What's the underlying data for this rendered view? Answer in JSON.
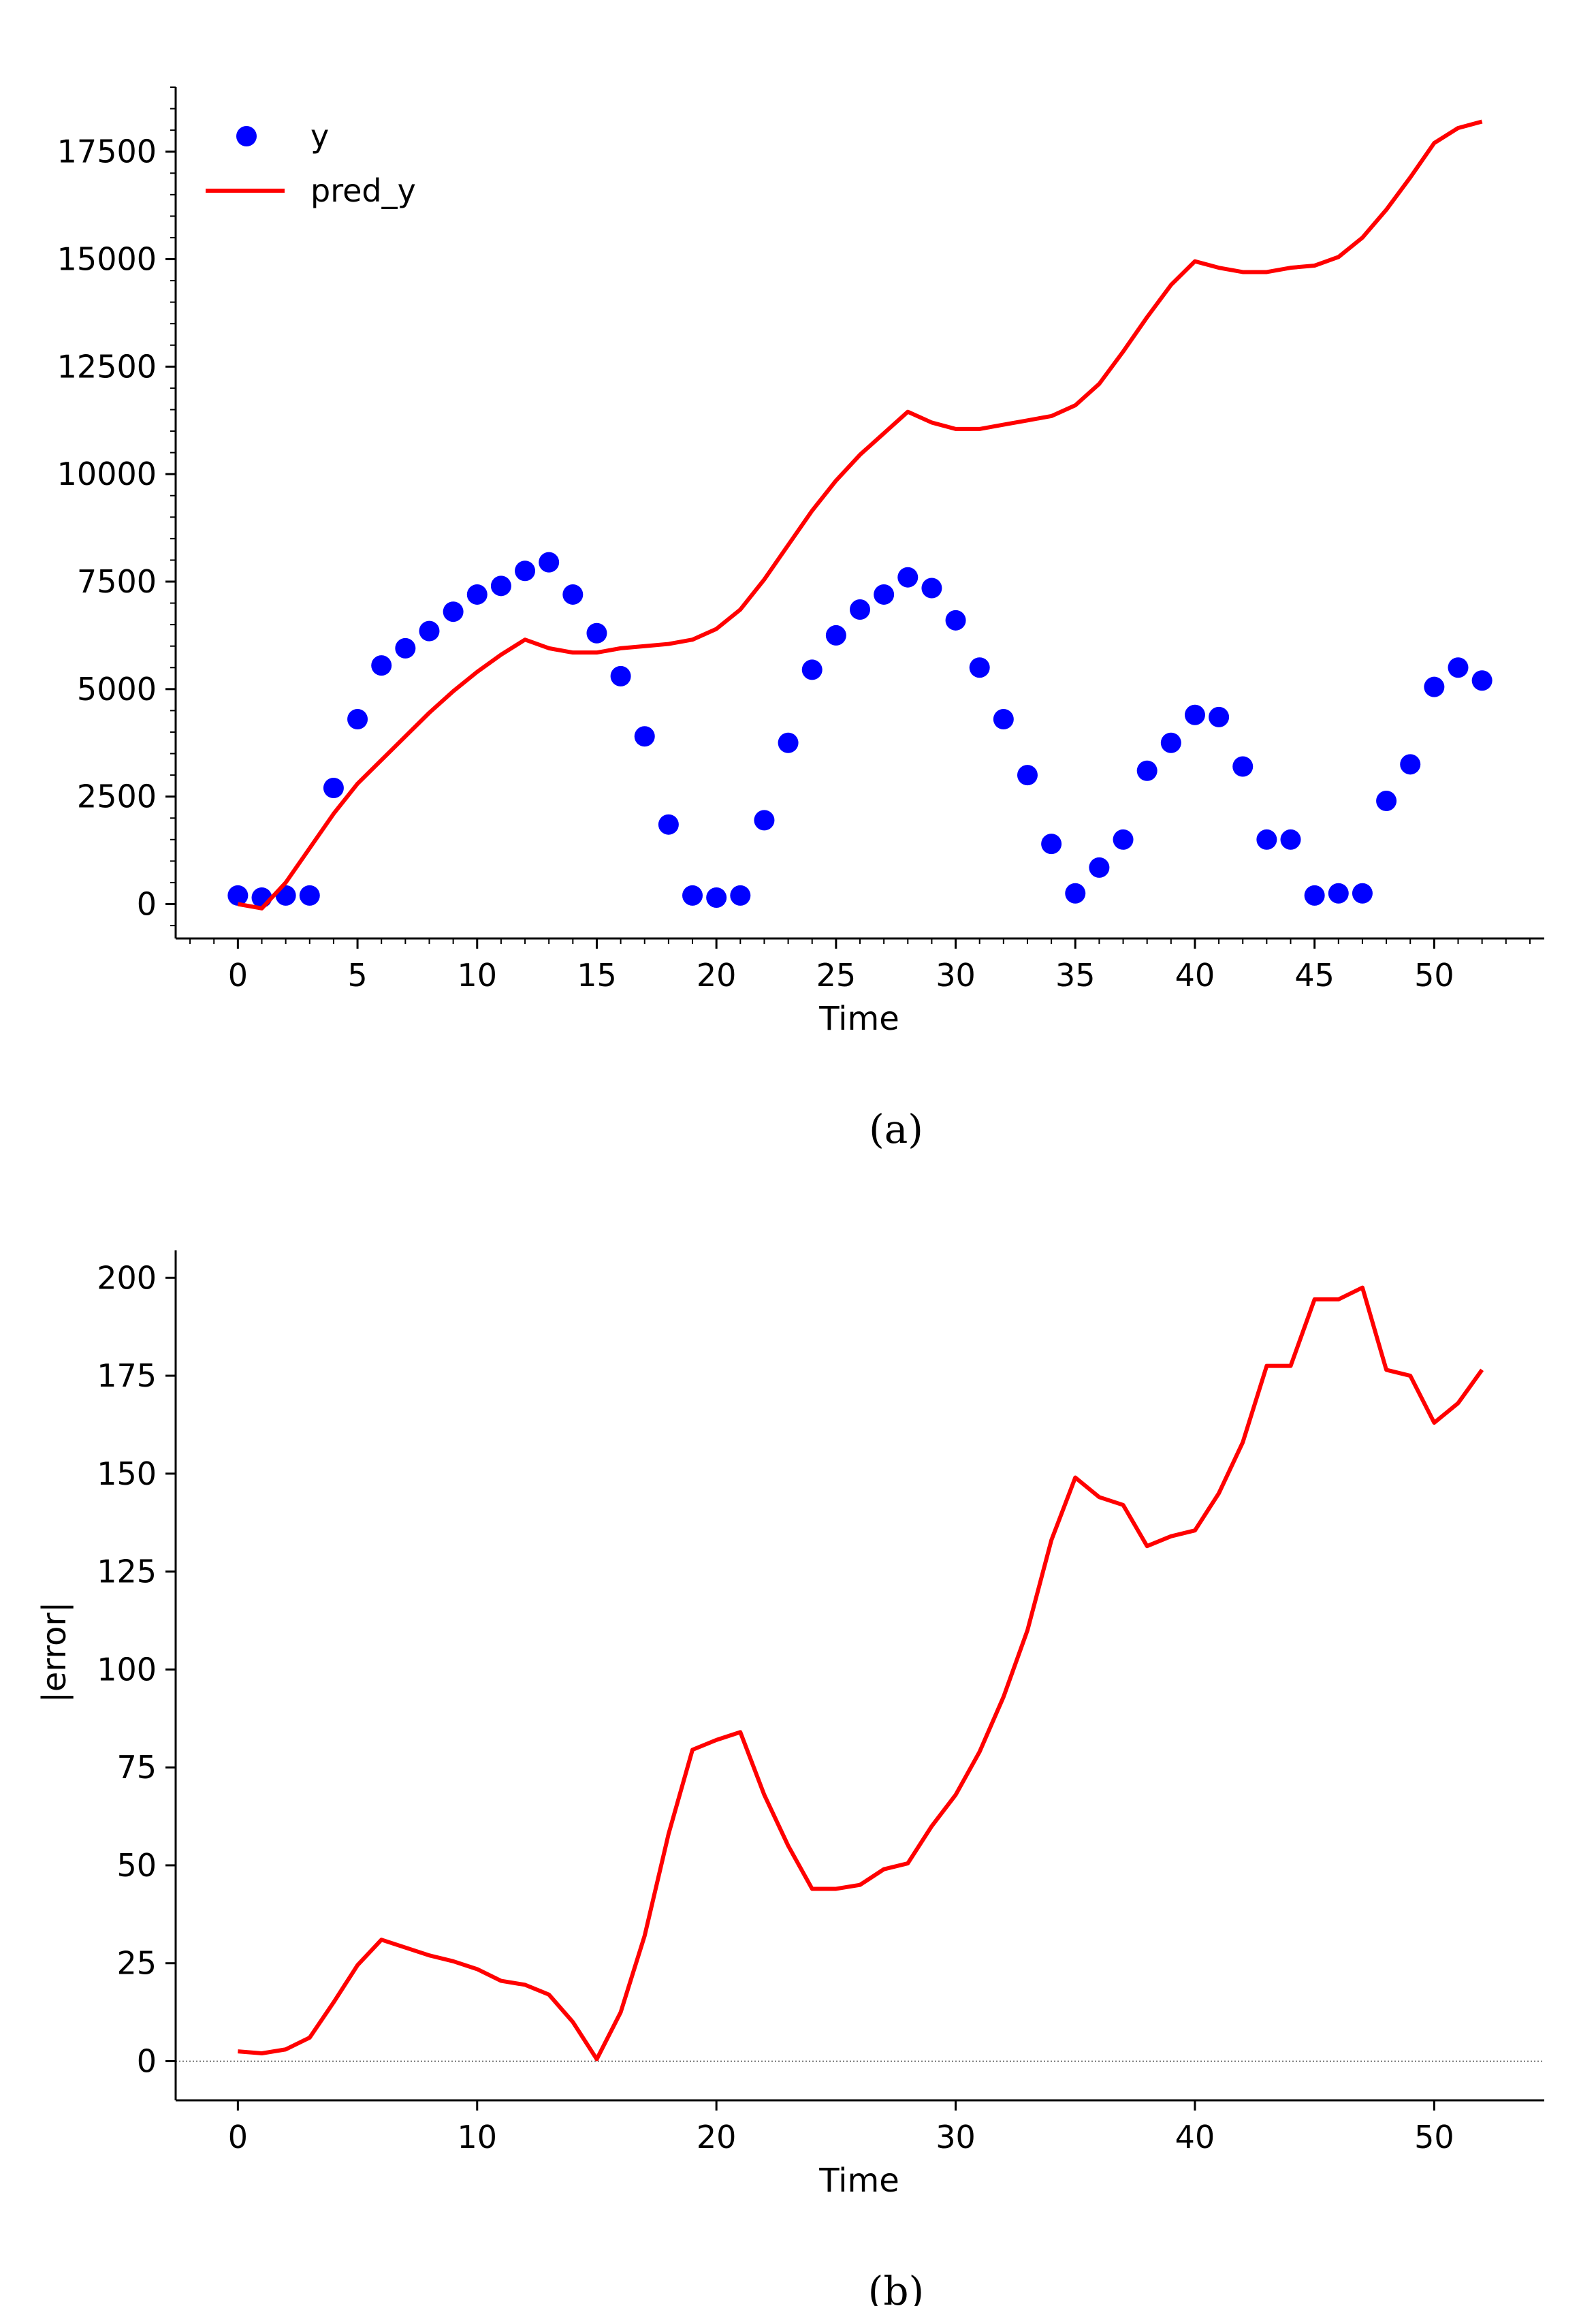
{
  "figure": {
    "caption_a": "(a)",
    "caption_b": "(b)"
  },
  "chart_data": [
    {
      "type": "scatter",
      "panel": "a",
      "xlabel": "Time",
      "ylabel": "",
      "xlim": [
        -2.6,
        54.6
      ],
      "ylim": [
        -800,
        19000
      ],
      "xticks": [
        0,
        5,
        10,
        15,
        20,
        25,
        30,
        35,
        40,
        45,
        50
      ],
      "xtick_labels": [
        "0",
        "5",
        "10",
        "15",
        "20",
        "25",
        "30",
        "35",
        "40",
        "45",
        "50"
      ],
      "yticks": [
        0,
        2500,
        5000,
        7500,
        10000,
        12500,
        15000,
        17500
      ],
      "ytick_labels": [
        "0",
        "2500",
        "5000",
        "7500",
        "10000",
        "12500",
        "15000",
        "17500"
      ],
      "legend_position": "top-left",
      "grid": false,
      "series": [
        {
          "name": "y",
          "kind": "scatter",
          "color": "#0000ff",
          "x": [
            0,
            1,
            2,
            3,
            4,
            5,
            6,
            7,
            8,
            9,
            10,
            11,
            12,
            13,
            14,
            15,
            16,
            17,
            18,
            19,
            20,
            21,
            22,
            23,
            24,
            25,
            26,
            27,
            28,
            29,
            30,
            31,
            32,
            33,
            34,
            35,
            36,
            37,
            38,
            39,
            40,
            41,
            42,
            43,
            44,
            45,
            46,
            47,
            48,
            49,
            50,
            51,
            52
          ],
          "y": [
            200,
            150,
            200,
            200,
            2700,
            4300,
            5550,
            5950,
            6350,
            6800,
            7200,
            7400,
            7750,
            7950,
            7200,
            6300,
            5300,
            3900,
            1850,
            200,
            150,
            200,
            1950,
            3750,
            5450,
            6250,
            6850,
            7200,
            7600,
            7350,
            6600,
            5500,
            4300,
            3000,
            1400,
            250,
            850,
            1500,
            3100,
            3750,
            4400,
            4350,
            3200,
            1500,
            1500,
            200,
            250,
            250,
            2400,
            3250,
            5050,
            5500,
            5200
          ]
        },
        {
          "name": "pred_y",
          "kind": "line",
          "color": "#ff0000",
          "x": [
            0,
            1,
            2,
            3,
            4,
            5,
            6,
            7,
            8,
            9,
            10,
            11,
            12,
            13,
            14,
            15,
            16,
            17,
            18,
            19,
            20,
            21,
            22,
            23,
            24,
            25,
            26,
            27,
            28,
            29,
            30,
            31,
            32,
            33,
            34,
            35,
            36,
            37,
            38,
            39,
            40,
            41,
            42,
            43,
            44,
            45,
            46,
            47,
            48,
            49,
            50,
            51,
            52
          ],
          "y": [
            0,
            -100,
            500,
            1300,
            2100,
            2800,
            3350,
            3900,
            4450,
            4950,
            5400,
            5800,
            6150,
            5950,
            5850,
            5850,
            5950,
            6000,
            6050,
            6150,
            6400,
            6850,
            7550,
            8350,
            9150,
            9850,
            10450,
            10950,
            11450,
            11200,
            11050,
            11050,
            11150,
            11250,
            11350,
            11600,
            12100,
            12850,
            13650,
            14400,
            14950,
            14800,
            14700,
            14700,
            14800,
            14850,
            15050,
            15500,
            16150,
            16900,
            17700,
            18050,
            18200
          ]
        }
      ]
    },
    {
      "type": "line",
      "panel": "b",
      "xlabel": "Time",
      "ylabel": "|error|",
      "xlim": [
        -2.6,
        54.6
      ],
      "ylim": [
        -10,
        207
      ],
      "xticks": [
        0,
        10,
        20,
        30,
        40,
        50
      ],
      "xtick_labels": [
        "0",
        "10",
        "20",
        "30",
        "40",
        "50"
      ],
      "yticks": [
        0,
        25,
        50,
        75,
        100,
        125,
        150,
        175,
        200
      ],
      "ytick_labels": [
        "0",
        "25",
        "50",
        "75",
        "100",
        "125",
        "150",
        "175",
        "200"
      ],
      "zero_line": true,
      "grid": false,
      "series": [
        {
          "name": "",
          "color": "#ff0000",
          "x": [
            0,
            1,
            2,
            3,
            4,
            5,
            6,
            7,
            8,
            9,
            10,
            11,
            12,
            13,
            14,
            15,
            16,
            17,
            18,
            19,
            20,
            21,
            22,
            23,
            24,
            25,
            26,
            27,
            28,
            29,
            30,
            31,
            32,
            33,
            34,
            35,
            36,
            37,
            38,
            39,
            40,
            41,
            42,
            43,
            44,
            45,
            46,
            47,
            48,
            49,
            50,
            51,
            52
          ],
          "y": [
            2.5,
            2,
            3,
            6,
            15,
            24.5,
            31,
            29,
            27,
            25.5,
            23.5,
            20.5,
            19.5,
            17,
            10,
            0.5,
            12.5,
            32,
            58,
            79.5,
            82,
            84,
            68,
            55,
            44,
            44,
            45,
            49,
            50.5,
            60,
            68,
            79,
            93,
            110,
            133,
            149,
            144,
            142,
            131.5,
            134,
            135.5,
            145,
            158,
            177.5,
            177.5,
            194.5,
            194.5,
            197.5,
            176.5,
            175,
            163,
            168,
            176.5
          ]
        }
      ]
    }
  ]
}
